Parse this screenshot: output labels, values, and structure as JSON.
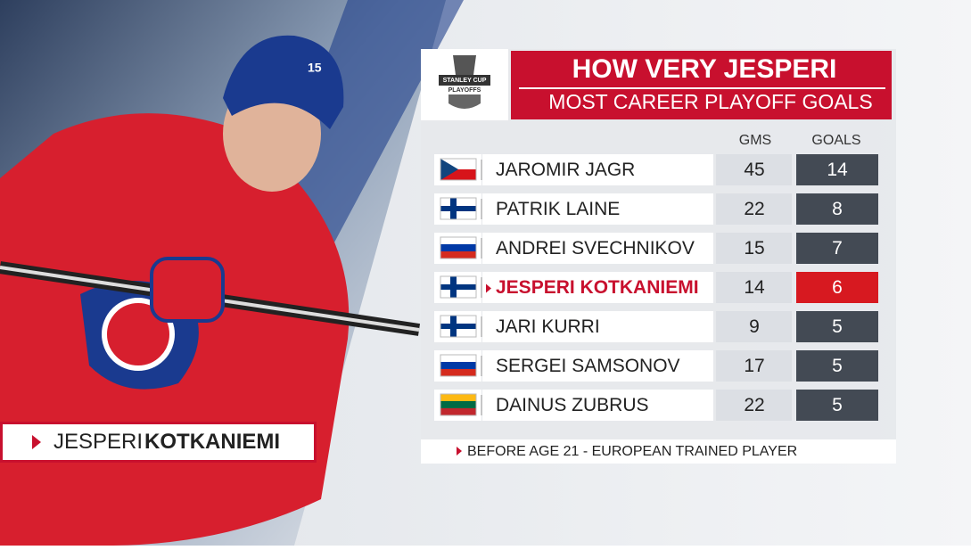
{
  "header": {
    "title": "HOW VERY JESPERI",
    "subtitle": "MOST CAREER PLAYOFF GOALS"
  },
  "logo": {
    "line1": "STANLEY CUP",
    "line2": "PLAYOFFS"
  },
  "table": {
    "columns": [
      "GMS",
      "GOALS"
    ],
    "rows": [
      [
        "JAROMIR JAGR",
        "45",
        "14"
      ],
      [
        "PATRIK LAINE",
        "22",
        "8"
      ],
      [
        "ANDREI SVECHNIKOV",
        "15",
        "7"
      ],
      [
        "JESPERI KOTKANIEMI",
        "14",
        "6"
      ],
      [
        "JARI KURRI",
        "9",
        "5"
      ],
      [
        "SERGEI SAMSONOV",
        "17",
        "5"
      ],
      [
        "DAINUS ZUBRUS",
        "22",
        "5"
      ]
    ]
  },
  "footnote": "BEFORE AGE 21 - EUROPEAN TRAINED PLAYER",
  "player_tag": {
    "first": "JESPERI",
    "last": "KOTKANIEMI"
  }
}
